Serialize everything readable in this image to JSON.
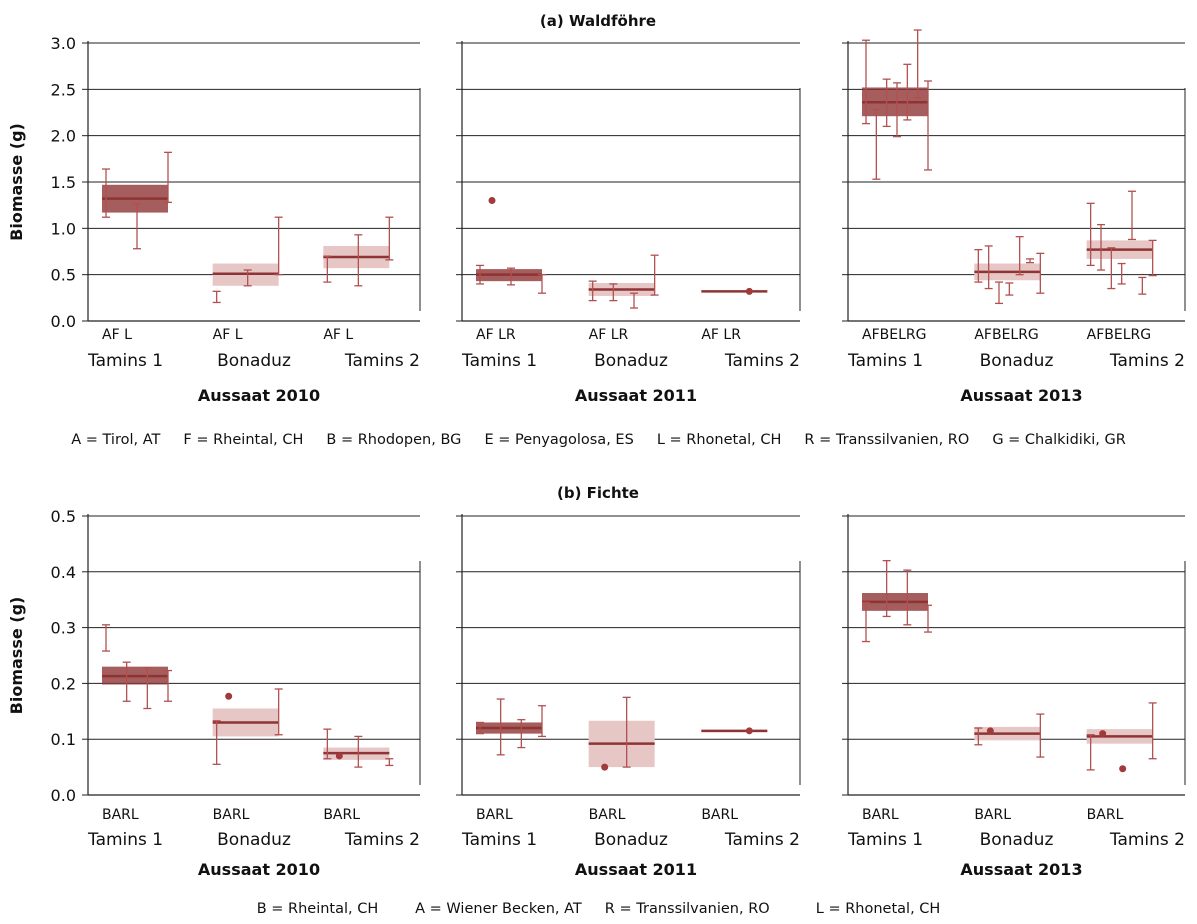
{
  "figure": {
    "legend_a": "A = Tirol, AT     F = Rheintal, CH     B = Rhodopen, BG     E = Penyagolosa, ES     L = Rhonetal, CH     R = Transsilvanien, RO     G = Chalkidiki, GR",
    "legend_b": "B = Rheintal, CH        A = Wiener Becken, AT     R = Transsilvanien, RO          L = Rhonetal, CH"
  },
  "chart_data": [
    {
      "type": "box",
      "title": "(a) Waldföhre",
      "ylabel": "Biomasse (g)",
      "ylim": [
        0,
        3.0
      ],
      "yticks": [
        "0.0",
        "0.5",
        "1.0",
        "1.5",
        "2.0",
        "2.5",
        "3.0"
      ],
      "grid": true,
      "sites": [
        "Tamins 1",
        "Bonaduz",
        "Tamins 2"
      ],
      "panels": [
        {
          "xlabel": "Aussaat 2010",
          "groups": [
            {
              "site": "Tamins 1",
              "codes": "AF   L",
              "box": {
                "low": 1.17,
                "high": 1.47,
                "median": 1.32
              },
              "errorbars": [
                {
                  "low": 1.12,
                  "high": 1.64
                },
                {
                  "low": 0.78,
                  "high": 1.26
                },
                {
                  "low": 1.28,
                  "high": 1.82
                }
              ],
              "points": []
            },
            {
              "site": "Bonaduz",
              "codes": "AF   L",
              "box": {
                "low": 0.38,
                "high": 0.62,
                "median": 0.51
              },
              "errorbars": [
                {
                  "low": 0.2,
                  "high": 0.32
                },
                {
                  "low": 0.38,
                  "high": 0.55
                },
                {
                  "low": 0.5,
                  "high": 1.12
                }
              ],
              "points": []
            },
            {
              "site": "Tamins 2",
              "codes": "AF   L",
              "box": {
                "low": 0.57,
                "high": 0.81,
                "median": 0.69
              },
              "errorbars": [
                {
                  "low": 0.42,
                  "high": 0.7
                },
                {
                  "low": 0.38,
                  "high": 0.93
                },
                {
                  "low": 0.66,
                  "high": 1.12
                }
              ],
              "points": []
            }
          ]
        },
        {
          "xlabel": "Aussaat 2011",
          "groups": [
            {
              "site": "Tamins 1",
              "codes": "AF   LR",
              "box": {
                "low": 0.43,
                "high": 0.56,
                "median": 0.5
              },
              "errorbars": [
                {
                  "low": 0.4,
                  "high": 0.6
                },
                {
                  "low": 0.39,
                  "high": 0.57
                },
                {
                  "low": 0.3,
                  "high": 0.5
                }
              ],
              "points": [
                1.3
              ]
            },
            {
              "site": "Bonaduz",
              "codes": "AF   LR",
              "box": {
                "low": 0.27,
                "high": 0.41,
                "median": 0.34
              },
              "errorbars": [
                {
                  "low": 0.22,
                  "high": 0.43
                },
                {
                  "low": 0.22,
                  "high": 0.4
                },
                {
                  "low": 0.14,
                  "high": 0.3
                },
                {
                  "low": 0.28,
                  "high": 0.71
                }
              ],
              "points": []
            },
            {
              "site": "Tamins 2",
              "codes": "AF   LR",
              "box": {
                "low": 0.31,
                "high": 0.33,
                "median": 0.32
              },
              "errorbars": [],
              "points": [
                0.32
              ]
            }
          ]
        },
        {
          "xlabel": "Aussaat 2013",
          "groups": [
            {
              "site": "Tamins 1",
              "codes": "AFBELRG",
              "box": {
                "low": 2.21,
                "high": 2.52,
                "median": 2.36
              },
              "errorbars": [
                {
                  "low": 2.13,
                  "high": 3.03
                },
                {
                  "low": 1.53,
                  "high": 2.28
                },
                {
                  "low": 2.1,
                  "high": 2.61
                },
                {
                  "low": 1.99,
                  "high": 2.57
                },
                {
                  "low": 2.17,
                  "high": 2.77
                },
                {
                  "low": 2.41,
                  "high": 3.14
                },
                {
                  "low": 1.63,
                  "high": 2.59
                }
              ],
              "points": []
            },
            {
              "site": "Bonaduz",
              "codes": "AFBELRG",
              "box": {
                "low": 0.44,
                "high": 0.62,
                "median": 0.53
              },
              "errorbars": [
                {
                  "low": 0.42,
                  "high": 0.77
                },
                {
                  "low": 0.35,
                  "high": 0.81
                },
                {
                  "low": 0.19,
                  "high": 0.42
                },
                {
                  "low": 0.28,
                  "high": 0.41
                },
                {
                  "low": 0.5,
                  "high": 0.91
                },
                {
                  "low": 0.63,
                  "high": 0.67
                },
                {
                  "low": 0.3,
                  "high": 0.73
                }
              ],
              "points": []
            },
            {
              "site": "Tamins 2",
              "codes": "AFBELRG",
              "box": {
                "low": 0.67,
                "high": 0.87,
                "median": 0.77
              },
              "errorbars": [
                {
                  "low": 0.6,
                  "high": 1.27
                },
                {
                  "low": 0.55,
                  "high": 1.04
                },
                {
                  "low": 0.35,
                  "high": 0.79
                },
                {
                  "low": 0.4,
                  "high": 0.62
                },
                {
                  "low": 0.88,
                  "high": 1.4
                },
                {
                  "low": 0.29,
                  "high": 0.47
                },
                {
                  "low": 0.49,
                  "high": 0.87
                }
              ],
              "points": []
            }
          ]
        }
      ]
    },
    {
      "type": "box",
      "title": "(b) Fichte",
      "ylabel": "Biomasse (g)",
      "ylim": [
        0,
        0.5
      ],
      "yticks": [
        "0.0",
        "0.1",
        "0.2",
        "0.3",
        "0.4",
        "0.5"
      ],
      "grid": true,
      "sites": [
        "Tamins 1",
        "Bonaduz",
        "Tamins 2"
      ],
      "panels": [
        {
          "xlabel": "Aussaat 2010",
          "groups": [
            {
              "site": "Tamins 1",
              "codes": "BARL",
              "box": {
                "low": 0.198,
                "high": 0.23,
                "median": 0.213
              },
              "errorbars": [
                {
                  "low": 0.258,
                  "high": 0.305
                },
                {
                  "low": 0.168,
                  "high": 0.238
                },
                {
                  "low": 0.155,
                  "high": 0.228
                },
                {
                  "low": 0.168,
                  "high": 0.223
                }
              ],
              "points": []
            },
            {
              "site": "Bonaduz",
              "codes": "BARL",
              "box": {
                "low": 0.105,
                "high": 0.155,
                "median": 0.13
              },
              "errorbars": [
                {
                  "low": 0.055,
                  "high": 0.133
                },
                {
                  "low": 0.108,
                  "high": 0.19
                }
              ],
              "points": [
                0.177
              ]
            },
            {
              "site": "Tamins 2",
              "codes": "BARL",
              "box": {
                "low": 0.063,
                "high": 0.085,
                "median": 0.075
              },
              "errorbars": [
                {
                  "low": 0.065,
                  "high": 0.118
                },
                {
                  "low": 0.05,
                  "high": 0.105
                },
                {
                  "low": 0.053,
                  "high": 0.065
                }
              ],
              "points": [
                0.07
              ]
            }
          ]
        },
        {
          "xlabel": "Aussaat 2011",
          "groups": [
            {
              "site": "Tamins 1",
              "codes": "BARL",
              "box": {
                "low": 0.11,
                "high": 0.13,
                "median": 0.12
              },
              "errorbars": [
                {
                  "low": 0.11,
                  "high": 0.13
                },
                {
                  "low": 0.072,
                  "high": 0.172
                },
                {
                  "low": 0.085,
                  "high": 0.135
                },
                {
                  "low": 0.105,
                  "high": 0.16
                }
              ],
              "points": []
            },
            {
              "site": "Bonaduz",
              "codes": "BARL",
              "box": {
                "low": 0.05,
                "high": 0.133,
                "median": 0.092
              },
              "errorbars": [
                {
                  "low": 0.05,
                  "high": 0.175
                }
              ],
              "points": [
                0.05
              ]
            },
            {
              "site": "Tamins 2",
              "codes": "BARL",
              "box": {
                "low": 0.113,
                "high": 0.116,
                "median": 0.115
              },
              "errorbars": [],
              "points": [
                0.115
              ]
            }
          ]
        },
        {
          "xlabel": "Aussaat 2013",
          "groups": [
            {
              "site": "Tamins 1",
              "codes": "BARL",
              "box": {
                "low": 0.33,
                "high": 0.362,
                "median": 0.346
              },
              "errorbars": [
                {
                  "low": 0.275,
                  "high": 0.345
                },
                {
                  "low": 0.32,
                  "high": 0.42
                },
                {
                  "low": 0.305,
                  "high": 0.403
                },
                {
                  "low": 0.292,
                  "high": 0.34
                }
              ],
              "points": []
            },
            {
              "site": "Bonaduz",
              "codes": "BARL",
              "box": {
                "low": 0.098,
                "high": 0.122,
                "median": 0.11
              },
              "errorbars": [
                {
                  "low": 0.09,
                  "high": 0.12
                },
                {
                  "low": 0.068,
                  "high": 0.145
                }
              ],
              "points": [
                0.115
              ]
            },
            {
              "site": "Tamins 2",
              "codes": "BARL",
              "box": {
                "low": 0.092,
                "high": 0.118,
                "median": 0.105
              },
              "errorbars": [
                {
                  "low": 0.045,
                  "high": 0.108
                },
                {
                  "low": 0.065,
                  "high": 0.165
                }
              ],
              "points": [
                0.11,
                0.047
              ]
            }
          ]
        }
      ]
    }
  ]
}
